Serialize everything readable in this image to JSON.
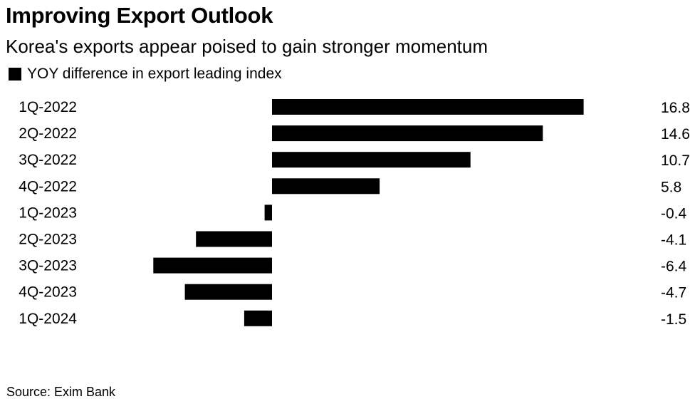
{
  "chart_data": {
    "type": "bar",
    "orientation": "horizontal",
    "title": "Improving Export Outlook",
    "subtitle": "Korea's exports appear poised to gain stronger momentum",
    "categories": [
      "1Q-2022",
      "2Q-2022",
      "3Q-2022",
      "4Q-2022",
      "1Q-2023",
      "2Q-2023",
      "3Q-2023",
      "4Q-2023",
      "1Q-2024"
    ],
    "series": [
      {
        "name": "YOY difference in export leading index",
        "values": [
          16.8,
          14.6,
          10.7,
          5.8,
          -0.4,
          -4.1,
          -6.4,
          -4.7,
          -1.5
        ],
        "value_labels": [
          "16.8",
          "14.6",
          "10.7",
          "5.8",
          "-0.4",
          "-4.1",
          "-6.4",
          "-4.7",
          "-1.5"
        ]
      }
    ],
    "xlim": [
      -6.4,
      16.8
    ],
    "grid": false,
    "legend_position": "top-left",
    "bar_color": "#000000",
    "source": "Source: Exim Bank"
  }
}
